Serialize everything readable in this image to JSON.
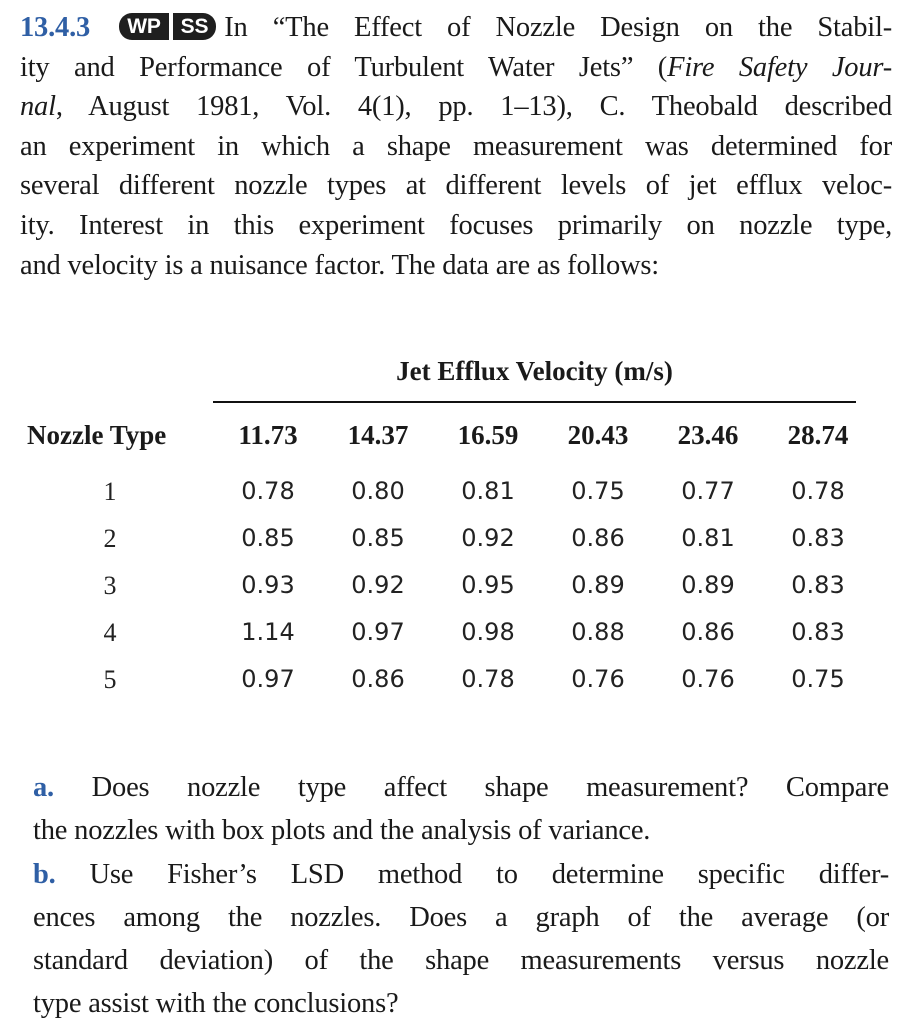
{
  "problem": {
    "number": "13.4.3",
    "badges": [
      "WP",
      "SS"
    ],
    "lines": [
      "In “The Effect of Nozzle Design on the Stabil-",
      "ity and Performance of Turbulent Water Jets” (",
      "Fire Safety Jour-",
      "nal",
      ", August 1981, Vol. 4(1), pp. 1–13), C. Theobald described",
      "an experiment in which a shape measurement was determined for",
      "several different nozzle types at different levels of jet efflux veloc-",
      "ity. Interest in this experiment focuses primarily on nozzle type,",
      "and velocity is a nuisance factor. The data are as follows:"
    ]
  },
  "table": {
    "column_group_title": "Jet Efflux Velocity (m/s)",
    "row_header": "Nozzle Type",
    "velocities": [
      "11.73",
      "14.37",
      "16.59",
      "20.43",
      "23.46",
      "28.74"
    ],
    "rows": [
      {
        "nozzle": "1",
        "values": [
          "0.78",
          "0.80",
          "0.81",
          "0.75",
          "0.77",
          "0.78"
        ]
      },
      {
        "nozzle": "2",
        "values": [
          "0.85",
          "0.85",
          "0.92",
          "0.86",
          "0.81",
          "0.83"
        ]
      },
      {
        "nozzle": "3",
        "values": [
          "0.93",
          "0.92",
          "0.95",
          "0.89",
          "0.89",
          "0.83"
        ]
      },
      {
        "nozzle": "4",
        "values": [
          "1.14",
          "0.97",
          "0.98",
          "0.88",
          "0.86",
          "0.83"
        ]
      },
      {
        "nozzle": "5",
        "values": [
          "0.97",
          "0.86",
          "0.78",
          "0.76",
          "0.76",
          "0.75"
        ]
      }
    ]
  },
  "questions": {
    "a_letter": "a.",
    "a_lines": [
      "Does nozzle type affect shape measurement? Compare",
      "the nozzles with box plots and the analysis of variance."
    ],
    "b_letter": "b.",
    "b_lines": [
      "Use Fisher’s LSD method to determine specific differ-",
      "ences among the nozzles. Does a graph of the average (or",
      "standard deviation) of the shape measurements versus nozzle",
      "type assist with the conclusions?"
    ]
  }
}
